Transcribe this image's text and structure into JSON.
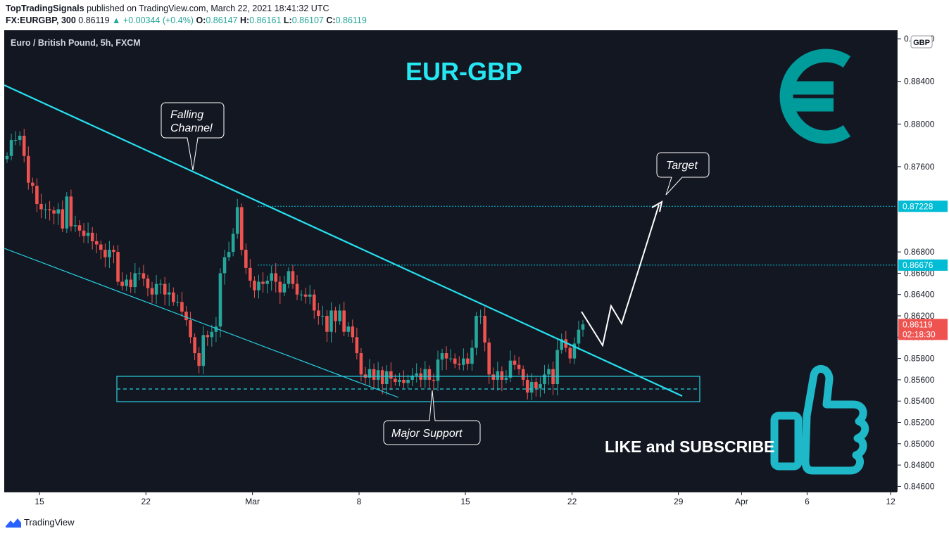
{
  "header": {
    "author": "TopTradingSignals",
    "published": "published on TradingView.com, March 22, 2021 18:41:32 UTC",
    "symbol": "FX:EURGBP, 300",
    "last": "0.86119",
    "change": "▲ +0.00344 (+0.4%)",
    "o_label": "O:",
    "o_val": "0.86147",
    "h_label": "H:",
    "h_val": "0.86161",
    "l_label": "L:",
    "l_val": "0.86107",
    "c_label": "C:",
    "c_val": "0.86119"
  },
  "footer": {
    "brand": "TradingView"
  },
  "chart_data": {
    "type": "candlestick",
    "legend_title": "Euro / British Pound, 5h, FXCM",
    "headline": "EUR-GBP",
    "currency_badge": "GBP",
    "ylim": [
      0.8455,
      0.8888
    ],
    "y_ticks": [
      "0.84600",
      "0.84800",
      "0.85000",
      "0.85200",
      "0.85400",
      "0.85600",
      "0.85800",
      "0.86000",
      "0.86200",
      "0.86400",
      "0.86600",
      "0.86800",
      "0.87600",
      "0.88000",
      "0.88400",
      "0.88800"
    ],
    "x_ticks": [
      {
        "label": "15",
        "x": 0.0395
      },
      {
        "label": "22",
        "x": 0.1587
      },
      {
        "label": "Mar",
        "x": 0.2781
      },
      {
        "label": "8",
        "x": 0.3975
      },
      {
        "label": "15",
        "x": 0.5166
      },
      {
        "label": "22",
        "x": 0.6361
      },
      {
        "label": "29",
        "x": 0.7553
      },
      {
        "label": "Apr",
        "x": 0.826
      },
      {
        "label": "6",
        "x": 0.8994
      },
      {
        "label": "12",
        "x": 0.993
      }
    ],
    "price_labels": [
      {
        "text": "0.87228",
        "value": 0.87228,
        "color": "#00bcd4"
      },
      {
        "text": "0.86676",
        "value": 0.86676,
        "color": "#00bcd4"
      },
      {
        "text": "0.86119",
        "value": 0.86119,
        "color": "#ef5350"
      }
    ],
    "countdown": "02:18:30",
    "closes": [
      0.877,
      0.8785,
      0.8785,
      0.8789,
      0.877,
      0.8745,
      0.8742,
      0.8725,
      0.872,
      0.872,
      0.8719,
      0.8716,
      0.872,
      0.8702,
      0.8732,
      0.8704,
      0.8705,
      0.87,
      0.8695,
      0.8698,
      0.869,
      0.8687,
      0.8682,
      0.8675,
      0.8682,
      0.868,
      0.8652,
      0.8648,
      0.8654,
      0.8647,
      0.866,
      0.866,
      0.8655,
      0.8646,
      0.864,
      0.865,
      0.865,
      0.864,
      0.8642,
      0.8633,
      0.8633,
      0.8624,
      0.8616,
      0.86,
      0.8585,
      0.8573,
      0.8602,
      0.86,
      0.8605,
      0.861,
      0.866,
      0.8675,
      0.868,
      0.8697,
      0.8722,
      0.8682,
      0.8665,
      0.8653,
      0.8644,
      0.8652,
      0.865,
      0.8653,
      0.866,
      0.8652,
      0.8642,
      0.865,
      0.8662,
      0.865,
      0.864,
      0.864,
      0.8638,
      0.864,
      0.8625,
      0.862,
      0.862,
      0.8605,
      0.8625,
      0.8615,
      0.8625,
      0.8605,
      0.861,
      0.86,
      0.8585,
      0.8565,
      0.8562,
      0.857,
      0.856,
      0.8569,
      0.8556,
      0.8568,
      0.8561,
      0.8558,
      0.856,
      0.8557,
      0.856,
      0.8564,
      0.8566,
      0.856,
      0.857,
      0.856,
      0.8559,
      0.8579,
      0.8585,
      0.858,
      0.858,
      0.8575,
      0.8574,
      0.858,
      0.8575,
      0.859,
      0.862,
      0.862,
      0.8595,
      0.8565,
      0.856,
      0.8568,
      0.856,
      0.8562,
      0.8578,
      0.8574,
      0.857,
      0.856,
      0.8548,
      0.8558,
      0.8552,
      0.8556,
      0.8565,
      0.857,
      0.8556,
      0.8588,
      0.8598,
      0.859,
      0.858,
      0.8594,
      0.8607,
      0.8612
    ],
    "annotations": [
      {
        "label": "Falling Channel"
      },
      {
        "label": "Target"
      },
      {
        "label": "Major Support"
      }
    ],
    "promo_text": "LIKE and SUBSCRIBE"
  }
}
